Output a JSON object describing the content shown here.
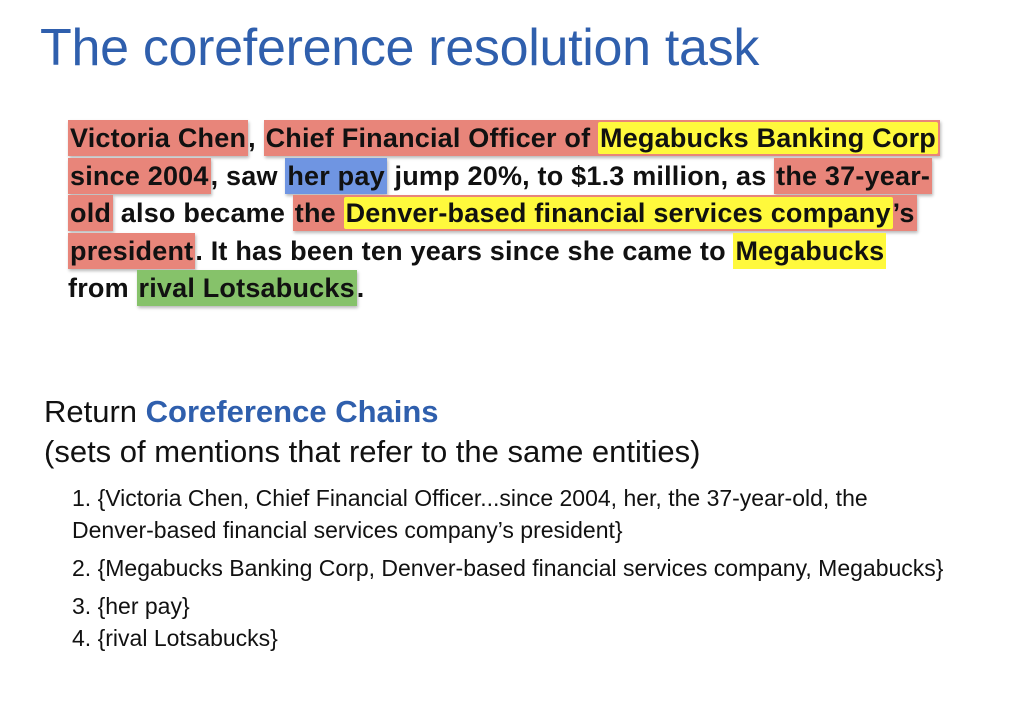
{
  "title": "The coreference resolution task",
  "passage": {
    "s01": "Victoria Chen",
    "s02": ", ",
    "s03": "Chief Financial Officer of ",
    "s04": "Megabucks Banking Corp",
    "s05": " since 2004",
    "s06": ", saw ",
    "s07": "her pay",
    "s08": " jump 20%, to $1.3 million, as ",
    "s09": "the 37-year-old",
    "s10": " also became ",
    "s11": "the ",
    "s12": "Denver-based financial services company",
    "s13": "’s president",
    "s14": ". It has been ten years since she came to ",
    "s15": "Megabucks",
    "s16": " from ",
    "s17": "rival Lotsabucks",
    "s18": "."
  },
  "subheading": {
    "prefix": "Return ",
    "accent": "Coreference Chains",
    "subtitle": "(sets of mentions that refer to the same entities)"
  },
  "chains": [
    "1. {Victoria Chen, Chief Financial Officer...since 2004, her, the 37-year-old, the Denver-based financial services company’s president}",
    "2. {Megabucks Banking Corp, Denver-based financial services company, Megabucks}",
    "3. {her pay}",
    "4. {rival Lotsabucks}"
  ],
  "colors": {
    "title": "#2f5fad",
    "person_mention": "#e8857a",
    "organization_mention": "#fff93c",
    "pay_mention": "#6f95e2",
    "rival_mention": "#86c26a"
  }
}
